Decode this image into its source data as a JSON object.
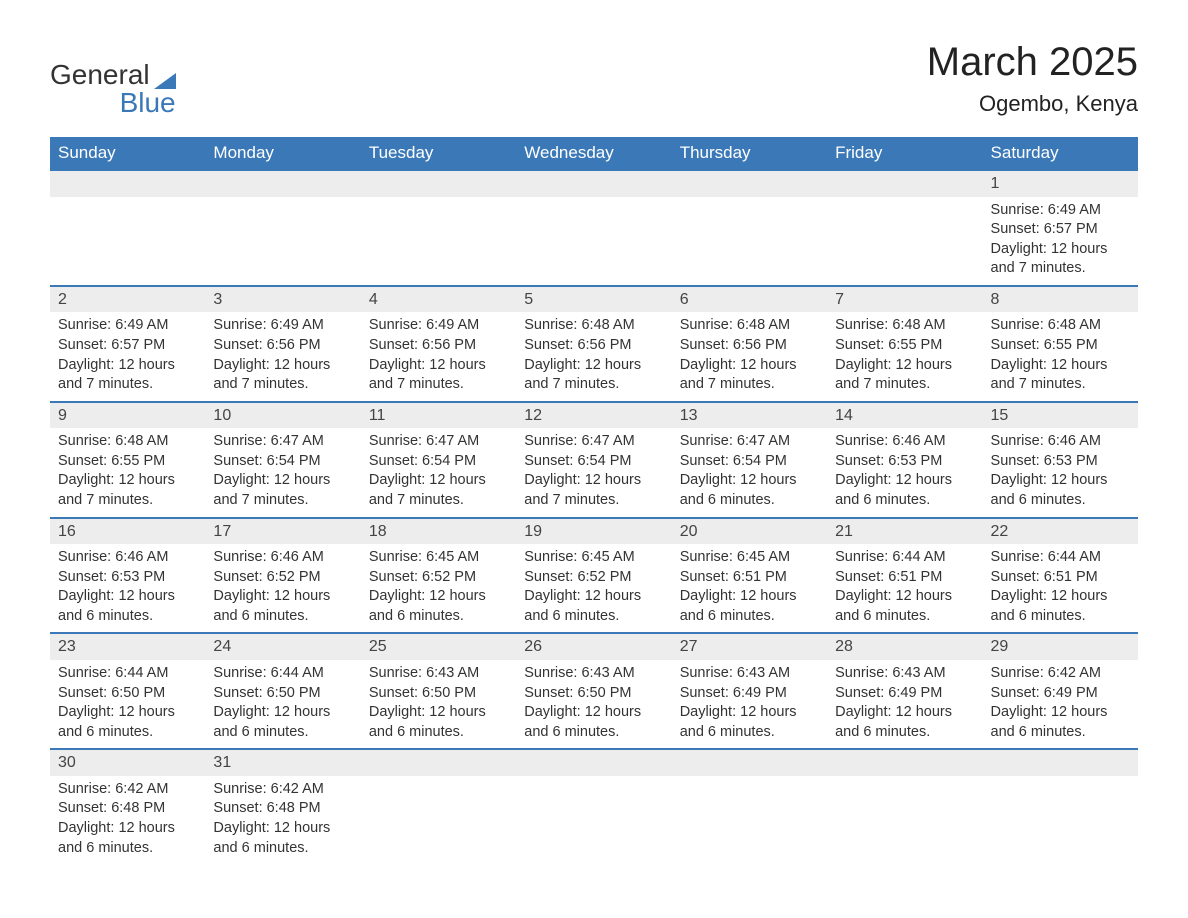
{
  "logo": {
    "text_top": "General",
    "text_bottom": "Blue",
    "accent_color": "#3a78b8"
  },
  "title": "March 2025",
  "location": "Ogembo, Kenya",
  "header_bg_color": "#3a78b8",
  "header_text_color": "#ffffff",
  "daynum_bg_color": "#ededed",
  "row_border_color": "#3a78b8",
  "text_color": "#333333",
  "background_color": "#ffffff",
  "day_headers": [
    "Sunday",
    "Monday",
    "Tuesday",
    "Wednesday",
    "Thursday",
    "Friday",
    "Saturday"
  ],
  "weeks": [
    [
      {
        "empty": true
      },
      {
        "empty": true
      },
      {
        "empty": true
      },
      {
        "empty": true
      },
      {
        "empty": true
      },
      {
        "empty": true
      },
      {
        "n": "1",
        "sr": "Sunrise: 6:49 AM",
        "ss": "Sunset: 6:57 PM",
        "dl": "Daylight: 12 hours and 7 minutes."
      }
    ],
    [
      {
        "n": "2",
        "sr": "Sunrise: 6:49 AM",
        "ss": "Sunset: 6:57 PM",
        "dl": "Daylight: 12 hours and 7 minutes."
      },
      {
        "n": "3",
        "sr": "Sunrise: 6:49 AM",
        "ss": "Sunset: 6:56 PM",
        "dl": "Daylight: 12 hours and 7 minutes."
      },
      {
        "n": "4",
        "sr": "Sunrise: 6:49 AM",
        "ss": "Sunset: 6:56 PM",
        "dl": "Daylight: 12 hours and 7 minutes."
      },
      {
        "n": "5",
        "sr": "Sunrise: 6:48 AM",
        "ss": "Sunset: 6:56 PM",
        "dl": "Daylight: 12 hours and 7 minutes."
      },
      {
        "n": "6",
        "sr": "Sunrise: 6:48 AM",
        "ss": "Sunset: 6:56 PM",
        "dl": "Daylight: 12 hours and 7 minutes."
      },
      {
        "n": "7",
        "sr": "Sunrise: 6:48 AM",
        "ss": "Sunset: 6:55 PM",
        "dl": "Daylight: 12 hours and 7 minutes."
      },
      {
        "n": "8",
        "sr": "Sunrise: 6:48 AM",
        "ss": "Sunset: 6:55 PM",
        "dl": "Daylight: 12 hours and 7 minutes."
      }
    ],
    [
      {
        "n": "9",
        "sr": "Sunrise: 6:48 AM",
        "ss": "Sunset: 6:55 PM",
        "dl": "Daylight: 12 hours and 7 minutes."
      },
      {
        "n": "10",
        "sr": "Sunrise: 6:47 AM",
        "ss": "Sunset: 6:54 PM",
        "dl": "Daylight: 12 hours and 7 minutes."
      },
      {
        "n": "11",
        "sr": "Sunrise: 6:47 AM",
        "ss": "Sunset: 6:54 PM",
        "dl": "Daylight: 12 hours and 7 minutes."
      },
      {
        "n": "12",
        "sr": "Sunrise: 6:47 AM",
        "ss": "Sunset: 6:54 PM",
        "dl": "Daylight: 12 hours and 7 minutes."
      },
      {
        "n": "13",
        "sr": "Sunrise: 6:47 AM",
        "ss": "Sunset: 6:54 PM",
        "dl": "Daylight: 12 hours and 6 minutes."
      },
      {
        "n": "14",
        "sr": "Sunrise: 6:46 AM",
        "ss": "Sunset: 6:53 PM",
        "dl": "Daylight: 12 hours and 6 minutes."
      },
      {
        "n": "15",
        "sr": "Sunrise: 6:46 AM",
        "ss": "Sunset: 6:53 PM",
        "dl": "Daylight: 12 hours and 6 minutes."
      }
    ],
    [
      {
        "n": "16",
        "sr": "Sunrise: 6:46 AM",
        "ss": "Sunset: 6:53 PM",
        "dl": "Daylight: 12 hours and 6 minutes."
      },
      {
        "n": "17",
        "sr": "Sunrise: 6:46 AM",
        "ss": "Sunset: 6:52 PM",
        "dl": "Daylight: 12 hours and 6 minutes."
      },
      {
        "n": "18",
        "sr": "Sunrise: 6:45 AM",
        "ss": "Sunset: 6:52 PM",
        "dl": "Daylight: 12 hours and 6 minutes."
      },
      {
        "n": "19",
        "sr": "Sunrise: 6:45 AM",
        "ss": "Sunset: 6:52 PM",
        "dl": "Daylight: 12 hours and 6 minutes."
      },
      {
        "n": "20",
        "sr": "Sunrise: 6:45 AM",
        "ss": "Sunset: 6:51 PM",
        "dl": "Daylight: 12 hours and 6 minutes."
      },
      {
        "n": "21",
        "sr": "Sunrise: 6:44 AM",
        "ss": "Sunset: 6:51 PM",
        "dl": "Daylight: 12 hours and 6 minutes."
      },
      {
        "n": "22",
        "sr": "Sunrise: 6:44 AM",
        "ss": "Sunset: 6:51 PM",
        "dl": "Daylight: 12 hours and 6 minutes."
      }
    ],
    [
      {
        "n": "23",
        "sr": "Sunrise: 6:44 AM",
        "ss": "Sunset: 6:50 PM",
        "dl": "Daylight: 12 hours and 6 minutes."
      },
      {
        "n": "24",
        "sr": "Sunrise: 6:44 AM",
        "ss": "Sunset: 6:50 PM",
        "dl": "Daylight: 12 hours and 6 minutes."
      },
      {
        "n": "25",
        "sr": "Sunrise: 6:43 AM",
        "ss": "Sunset: 6:50 PM",
        "dl": "Daylight: 12 hours and 6 minutes."
      },
      {
        "n": "26",
        "sr": "Sunrise: 6:43 AM",
        "ss": "Sunset: 6:50 PM",
        "dl": "Daylight: 12 hours and 6 minutes."
      },
      {
        "n": "27",
        "sr": "Sunrise: 6:43 AM",
        "ss": "Sunset: 6:49 PM",
        "dl": "Daylight: 12 hours and 6 minutes."
      },
      {
        "n": "28",
        "sr": "Sunrise: 6:43 AM",
        "ss": "Sunset: 6:49 PM",
        "dl": "Daylight: 12 hours and 6 minutes."
      },
      {
        "n": "29",
        "sr": "Sunrise: 6:42 AM",
        "ss": "Sunset: 6:49 PM",
        "dl": "Daylight: 12 hours and 6 minutes."
      }
    ],
    [
      {
        "n": "30",
        "sr": "Sunrise: 6:42 AM",
        "ss": "Sunset: 6:48 PM",
        "dl": "Daylight: 12 hours and 6 minutes."
      },
      {
        "n": "31",
        "sr": "Sunrise: 6:42 AM",
        "ss": "Sunset: 6:48 PM",
        "dl": "Daylight: 12 hours and 6 minutes."
      },
      {
        "empty": true
      },
      {
        "empty": true
      },
      {
        "empty": true
      },
      {
        "empty": true
      },
      {
        "empty": true
      }
    ]
  ]
}
